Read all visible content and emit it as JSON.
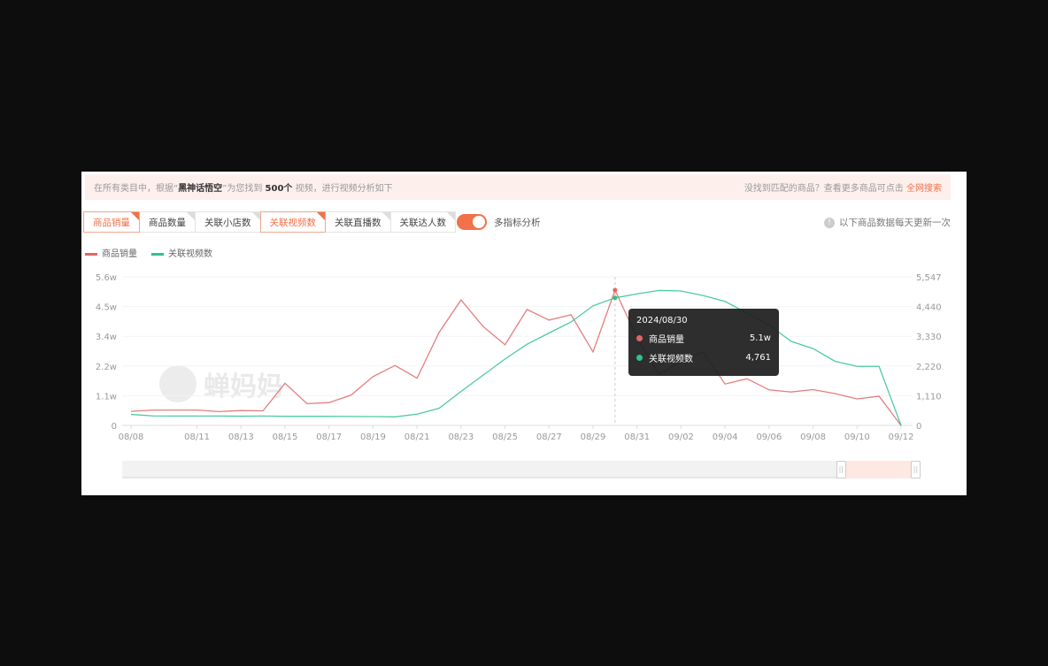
{
  "banner": {
    "prefix": "在所有类目中，根据“",
    "keyword": "黑神话悟空",
    "mid": "”为您找到 ",
    "count": "500个",
    "suffix": " 视频，进行视频分析如下",
    "right_text": "没找到匹配的商品？查看更多商品可点击 ",
    "right_link": "全网搜索"
  },
  "tabs": [
    {
      "label": "商品销量",
      "active": true
    },
    {
      "label": "商品数量",
      "active": false
    },
    {
      "label": "关联小店数",
      "active": false
    },
    {
      "label": "关联视频数",
      "active": true
    },
    {
      "label": "关联直播数",
      "active": false
    },
    {
      "label": "关联达人数",
      "active": false
    }
  ],
  "toggle": {
    "label": "多指标分析",
    "on": true
  },
  "note": {
    "icon": "info-icon",
    "text": "以下商品数据每天更新一次"
  },
  "watermark": "蝉妈妈",
  "tooltip": {
    "date": "2024/08/30",
    "rows": [
      {
        "name": "商品销量",
        "value": "5.1w"
      },
      {
        "name": "关联视频数",
        "value": "4,761"
      }
    ]
  },
  "colors": {
    "sales": "#e06666",
    "videos": "#2ec28f",
    "accent": "#f0714a"
  },
  "slider": {
    "start_percent": 90,
    "end_percent": 100
  },
  "chart_data": {
    "type": "line",
    "x": [
      "08/08",
      "08/09",
      "08/10",
      "08/11",
      "08/12",
      "08/13",
      "08/14",
      "08/15",
      "08/16",
      "08/17",
      "08/18",
      "08/19",
      "08/20",
      "08/21",
      "08/22",
      "08/23",
      "08/24",
      "08/25",
      "08/26",
      "08/27",
      "08/28",
      "08/29",
      "08/30",
      "08/31",
      "09/01",
      "09/02",
      "09/03",
      "09/04",
      "09/05",
      "09/06",
      "09/07",
      "09/08",
      "09/09",
      "09/10",
      "09/11",
      "09/12"
    ],
    "x_tick_labels": [
      "08/08",
      "08/11",
      "08/13",
      "08/15",
      "08/17",
      "08/19",
      "08/21",
      "08/23",
      "08/25",
      "08/27",
      "08/29",
      "08/31",
      "09/02",
      "09/04",
      "09/06",
      "09/08",
      "09/10",
      "09/12"
    ],
    "y_left": {
      "ticks": [
        "0",
        "1.1w",
        "2.2w",
        "3.4w",
        "4.5w",
        "5.6w"
      ],
      "range": [
        0,
        5.6
      ],
      "unit": "w"
    },
    "y_right": {
      "ticks": [
        "0",
        "1,110",
        "2,220",
        "3,330",
        "4,440",
        "5,547"
      ],
      "range": [
        0,
        5547
      ]
    },
    "grid": true,
    "legend": "top-left",
    "series": [
      {
        "name": "商品销量",
        "axis": "left",
        "values": [
          0.53,
          0.58,
          0.58,
          0.58,
          0.52,
          0.56,
          0.55,
          1.59,
          0.82,
          0.86,
          1.14,
          1.84,
          2.26,
          1.78,
          3.5,
          4.73,
          3.73,
          3.04,
          4.37,
          3.97,
          4.17,
          2.77,
          5.1,
          3.3,
          1.93,
          2.4,
          2.77,
          1.56,
          1.76,
          1.34,
          1.26,
          1.35,
          1.2,
          1.0,
          1.1,
          0
        ]
      },
      {
        "name": "关联视频数",
        "axis": "right",
        "values": [
          410,
          354,
          350,
          350,
          350,
          345,
          350,
          340,
          340,
          340,
          335,
          330,
          320,
          420,
          640,
          1270,
          1875,
          2480,
          3030,
          3450,
          3860,
          4465,
          4761,
          4910,
          5040,
          5020,
          4850,
          4630,
          4190,
          3750,
          3140,
          2870,
          2395,
          2205,
          2205,
          0
        ]
      }
    ]
  }
}
